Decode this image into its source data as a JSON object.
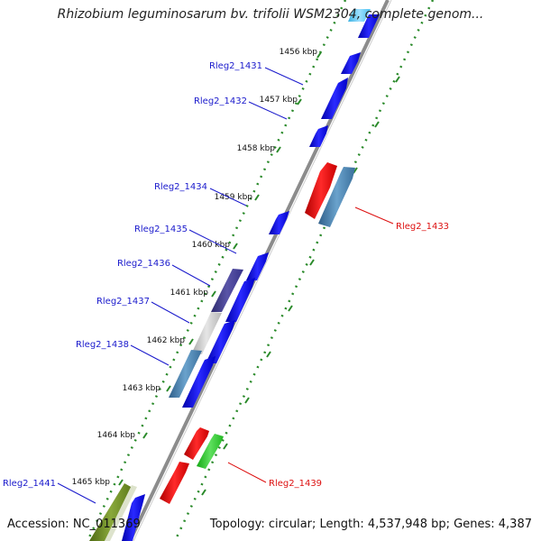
{
  "title": "Rhizobium leguminosarum bv. trifolii WSM2304, complete genom...",
  "accession": "Accession: NC_011369",
  "topology": "Topology: circular; Length: 4,537,948 bp; Genes: 4,387",
  "ticks": [
    "1456 kbp",
    "1457 kbp",
    "1458 kbp",
    "1459 kbp",
    "1460 kbp",
    "1461 kbp",
    "1462 kbp",
    "1463 kbp",
    "1464 kbp",
    "1465 kbp"
  ],
  "colors": {
    "forward_cds": "#0a0ae6",
    "reverse_cds": "#e60a0a",
    "label_forward": "#1a1acc",
    "label_reverse": "#dd1111",
    "backbone": "#8c8c8c",
    "dots": "#2a8a2a"
  },
  "genes": [
    {
      "label": "Rleg2_1431",
      "strand": "forward"
    },
    {
      "label": "Rleg2_1432",
      "strand": "forward"
    },
    {
      "label": "Rleg2_1433",
      "strand": "reverse"
    },
    {
      "label": "Rleg2_1434",
      "strand": "forward"
    },
    {
      "label": "Rleg2_1435",
      "strand": "forward"
    },
    {
      "label": "Rleg2_1436",
      "strand": "forward"
    },
    {
      "label": "Rleg2_1437",
      "strand": "forward"
    },
    {
      "label": "Rleg2_1438",
      "strand": "forward"
    },
    {
      "label": "Rleg2_1439",
      "strand": "reverse"
    },
    {
      "label": "Rleg2_1441",
      "strand": "forward"
    }
  ]
}
